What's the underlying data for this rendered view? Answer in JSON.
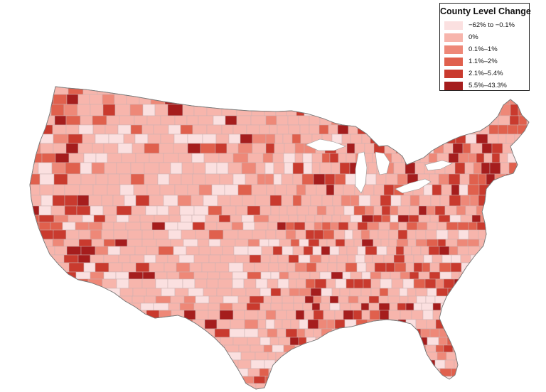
{
  "legend": {
    "title": "County Level Change",
    "items": [
      {
        "label": "−62% to −0.1%",
        "color": "#fbe0e0"
      },
      {
        "label": "0%",
        "color": "#f7b5ac"
      },
      {
        "label": "0.1%–1%",
        "color": "#ee8878"
      },
      {
        "label": "1.1%–2%",
        "color": "#e0604d"
      },
      {
        "label": "2.1%–5.4%",
        "color": "#c93a2e"
      },
      {
        "label": "5.5%–43.3%",
        "color": "#a51d1d"
      }
    ]
  },
  "colors": {
    "border": "#c9b0b0",
    "outline": "#7a7a7a",
    "base": "#f7b5ac"
  }
}
